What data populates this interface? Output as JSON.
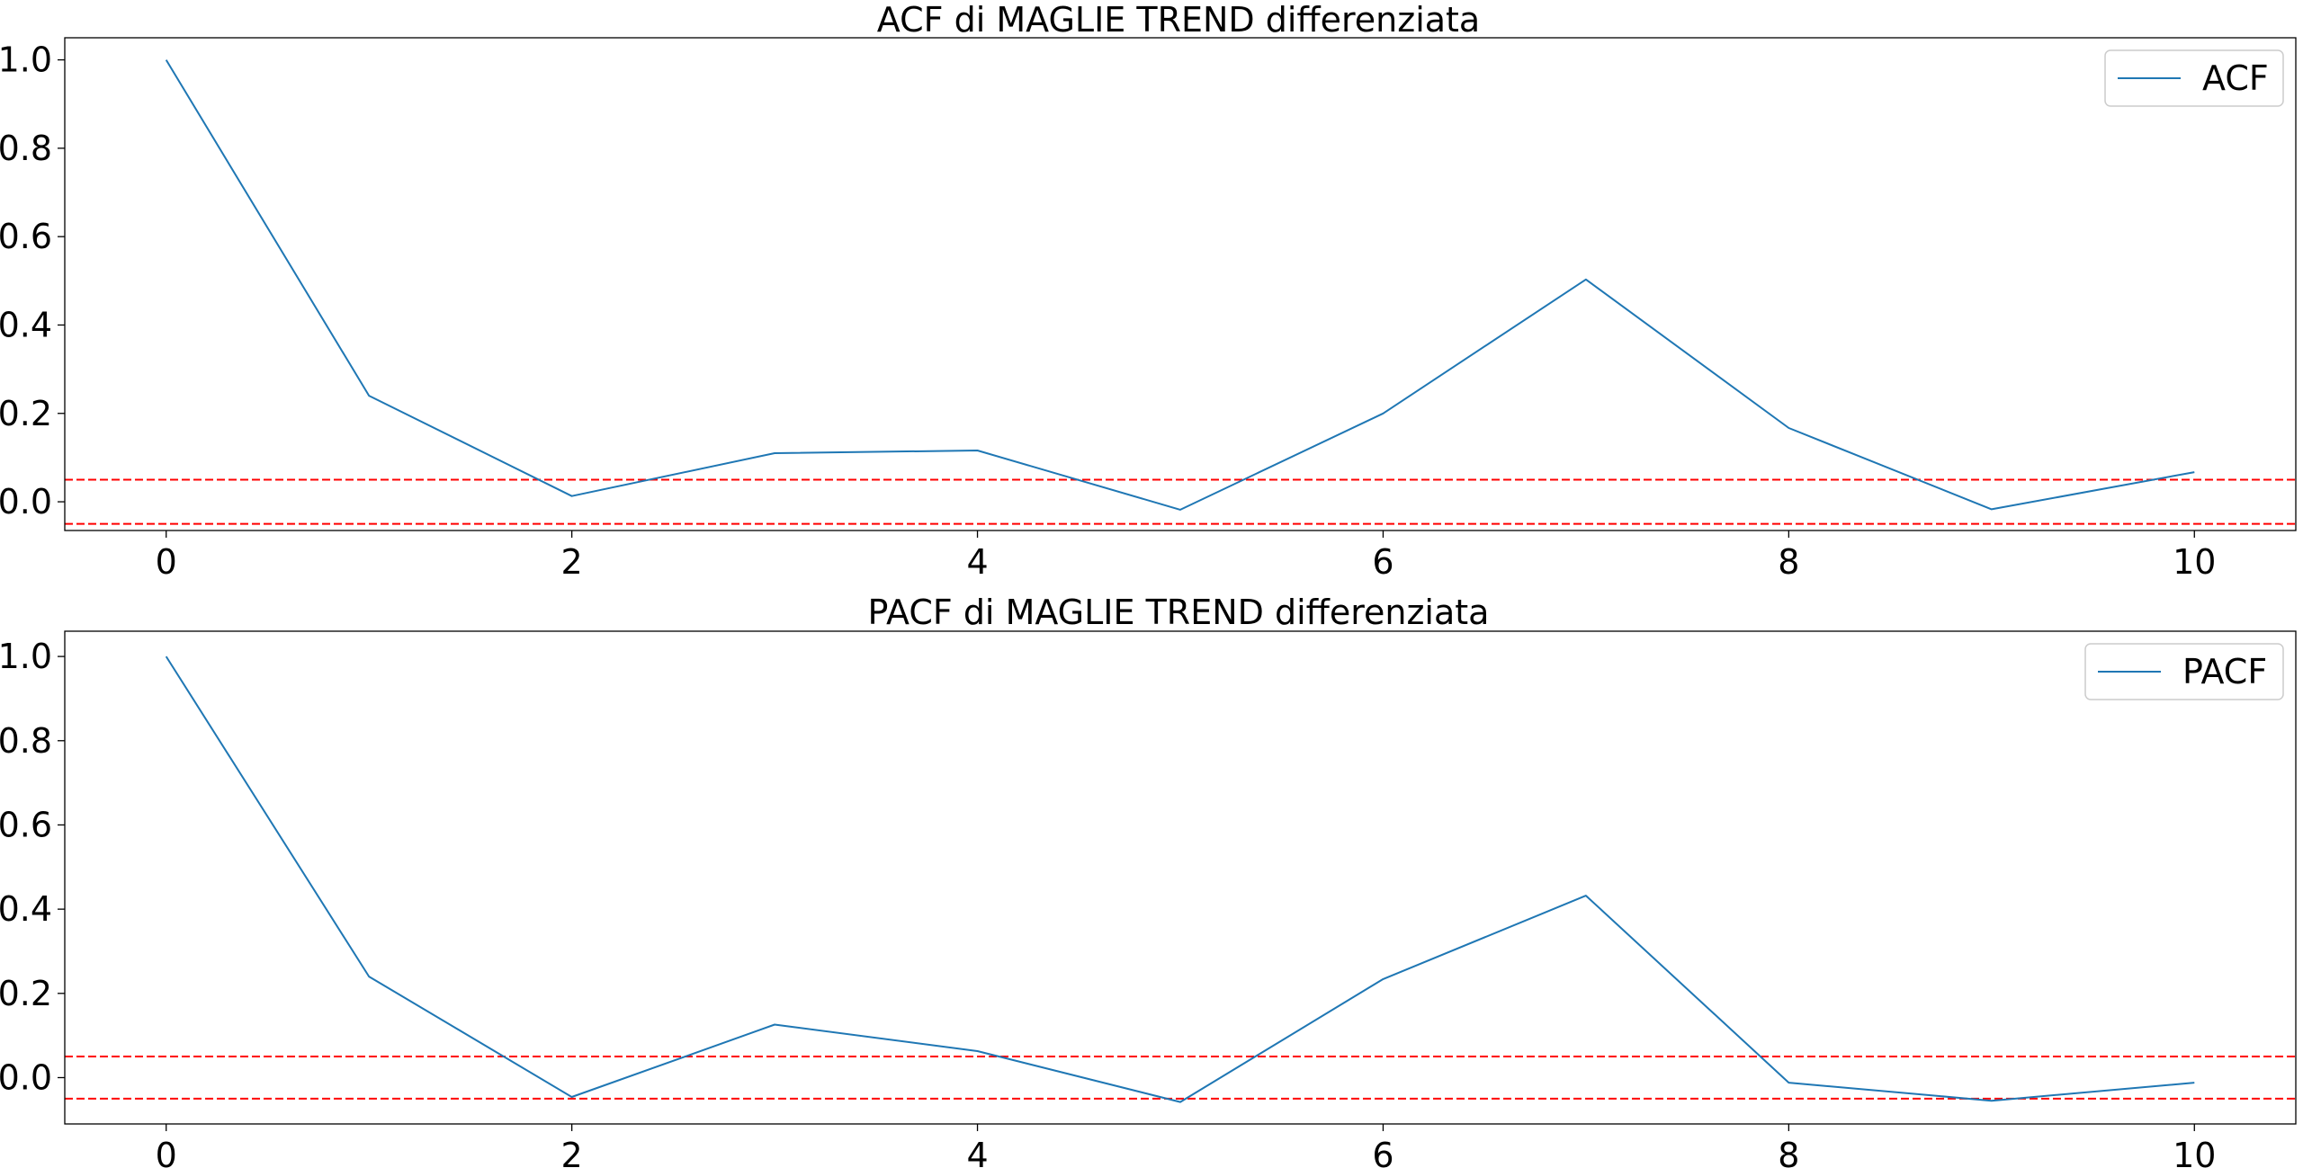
{
  "chart_data": [
    {
      "type": "line",
      "title": "ACF di MAGLIE TREND differenziata",
      "xlabel": "",
      "ylabel": "",
      "xlim": [
        -0.5,
        10.5
      ],
      "ylim": [
        -0.065,
        1.05
      ],
      "xticks": [
        0,
        2,
        4,
        6,
        8,
        10
      ],
      "yticks": [
        0.0,
        0.2,
        0.4,
        0.6,
        0.8,
        1.0
      ],
      "ytick_labels": [
        "0.0",
        "0.2",
        "0.4",
        "0.6",
        "0.8",
        "1.0"
      ],
      "grid": false,
      "legend_position": "top-right",
      "series": [
        {
          "name": "ACF",
          "color": "#1f77b4",
          "x": [
            0,
            1,
            2,
            3,
            4,
            5,
            6,
            7,
            8,
            9,
            10
          ],
          "values": [
            1.0,
            0.24,
            0.013,
            0.11,
            0.116,
            -0.018,
            0.2,
            0.503,
            0.167,
            -0.017,
            0.067
          ]
        }
      ],
      "reference_lines": [
        {
          "y": 0.05,
          "color": "#ff0000",
          "style": "dashed"
        },
        {
          "y": -0.05,
          "color": "#ff0000",
          "style": "dashed"
        }
      ]
    },
    {
      "type": "line",
      "title": "PACF di MAGLIE TREND differenziata",
      "xlabel": "",
      "ylabel": "",
      "xlim": [
        -0.5,
        10.5
      ],
      "ylim": [
        -0.11,
        1.06
      ],
      "xticks": [
        0,
        2,
        4,
        6,
        8,
        10
      ],
      "yticks": [
        0.0,
        0.2,
        0.4,
        0.6,
        0.8,
        1.0
      ],
      "ytick_labels": [
        "0.0",
        "0.2",
        "0.4",
        "0.6",
        "0.8",
        "1.0"
      ],
      "grid": false,
      "legend_position": "top-right",
      "series": [
        {
          "name": "PACF",
          "color": "#1f77b4",
          "x": [
            0,
            1,
            2,
            3,
            4,
            5,
            6,
            7,
            8,
            9,
            10
          ],
          "values": [
            1.0,
            0.24,
            -0.046,
            0.126,
            0.063,
            -0.058,
            0.234,
            0.432,
            -0.012,
            -0.055,
            -0.012
          ]
        }
      ],
      "reference_lines": [
        {
          "y": 0.05,
          "color": "#ff0000",
          "style": "dashed"
        },
        {
          "y": -0.05,
          "color": "#ff0000",
          "style": "dashed"
        }
      ]
    }
  ]
}
